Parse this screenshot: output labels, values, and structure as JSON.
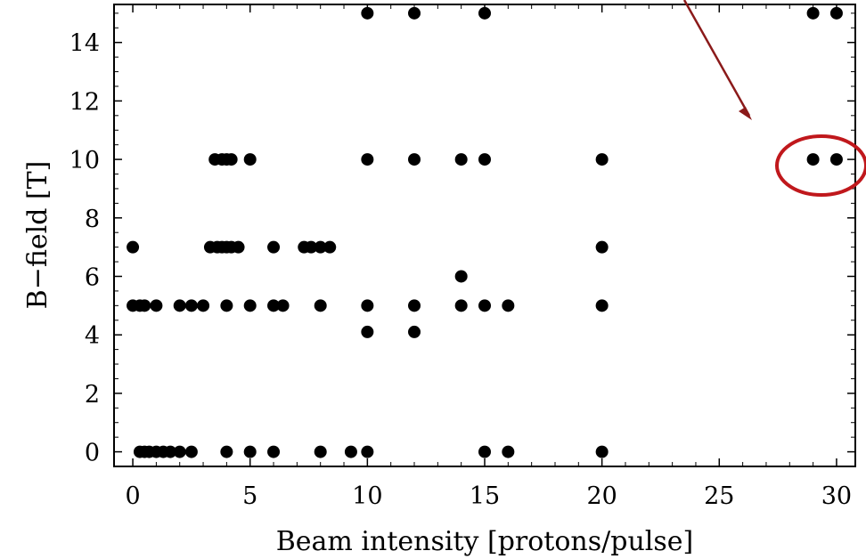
{
  "chart_data": {
    "type": "scatter",
    "xlabel": "Beam intensity [protons/pulse]",
    "ylabel": "B−field [T]",
    "xlim": [
      -0.8,
      30.8
    ],
    "ylim": [
      -0.5,
      15.3
    ],
    "x_ticks": [
      0,
      5,
      10,
      15,
      20,
      25,
      30
    ],
    "y_ticks": [
      0,
      2,
      4,
      6,
      8,
      10,
      12,
      14
    ],
    "grid": false,
    "marker_color": "#000000",
    "series": [
      {
        "points": [
          [
            0,
            7
          ],
          [
            0,
            5
          ],
          [
            0.3,
            5
          ],
          [
            0.5,
            5
          ],
          [
            1,
            5
          ],
          [
            2,
            5
          ],
          [
            2.5,
            5
          ],
          [
            3,
            5
          ],
          [
            0.3,
            0
          ],
          [
            0.5,
            0
          ],
          [
            0.7,
            0
          ],
          [
            1,
            0
          ],
          [
            1.3,
            0
          ],
          [
            1.6,
            0
          ],
          [
            2,
            0
          ],
          [
            2.5,
            0
          ],
          [
            3.3,
            7
          ],
          [
            3.6,
            7
          ],
          [
            3.8,
            7
          ],
          [
            4,
            7
          ],
          [
            4.2,
            7
          ],
          [
            4.5,
            7
          ],
          [
            3.5,
            10
          ],
          [
            3.8,
            10
          ],
          [
            4,
            10
          ],
          [
            4.2,
            10
          ],
          [
            4,
            5
          ],
          [
            4,
            0
          ],
          [
            5,
            10
          ],
          [
            5,
            5
          ],
          [
            5,
            0
          ],
          [
            6,
            7
          ],
          [
            6,
            5
          ],
          [
            6.4,
            5
          ],
          [
            6,
            0
          ],
          [
            7.3,
            7
          ],
          [
            7.6,
            7
          ],
          [
            8,
            7
          ],
          [
            8.4,
            7
          ],
          [
            8,
            5
          ],
          [
            8,
            0
          ],
          [
            9.3,
            0
          ],
          [
            10,
            15
          ],
          [
            10,
            10
          ],
          [
            10,
            5
          ],
          [
            10,
            4.1
          ],
          [
            10,
            0
          ],
          [
            12,
            15
          ],
          [
            12,
            10
          ],
          [
            12,
            5
          ],
          [
            12,
            4.1
          ],
          [
            14,
            10
          ],
          [
            14,
            6
          ],
          [
            14,
            5
          ],
          [
            15,
            15
          ],
          [
            15,
            10
          ],
          [
            15,
            5
          ],
          [
            15,
            0
          ],
          [
            16,
            5
          ],
          [
            16,
            0
          ],
          [
            20,
            10
          ],
          [
            20,
            7
          ],
          [
            20,
            5
          ],
          [
            20,
            0
          ],
          [
            29,
            15
          ],
          [
            30,
            15
          ],
          [
            29,
            10
          ],
          [
            30,
            10
          ]
        ]
      }
    ],
    "annotations": {
      "arrow_color": "#8B1A1A",
      "ellipse_color": "#C0181C",
      "highlighted_points": [
        [
          29,
          10
        ],
        [
          30,
          10
        ]
      ]
    }
  }
}
